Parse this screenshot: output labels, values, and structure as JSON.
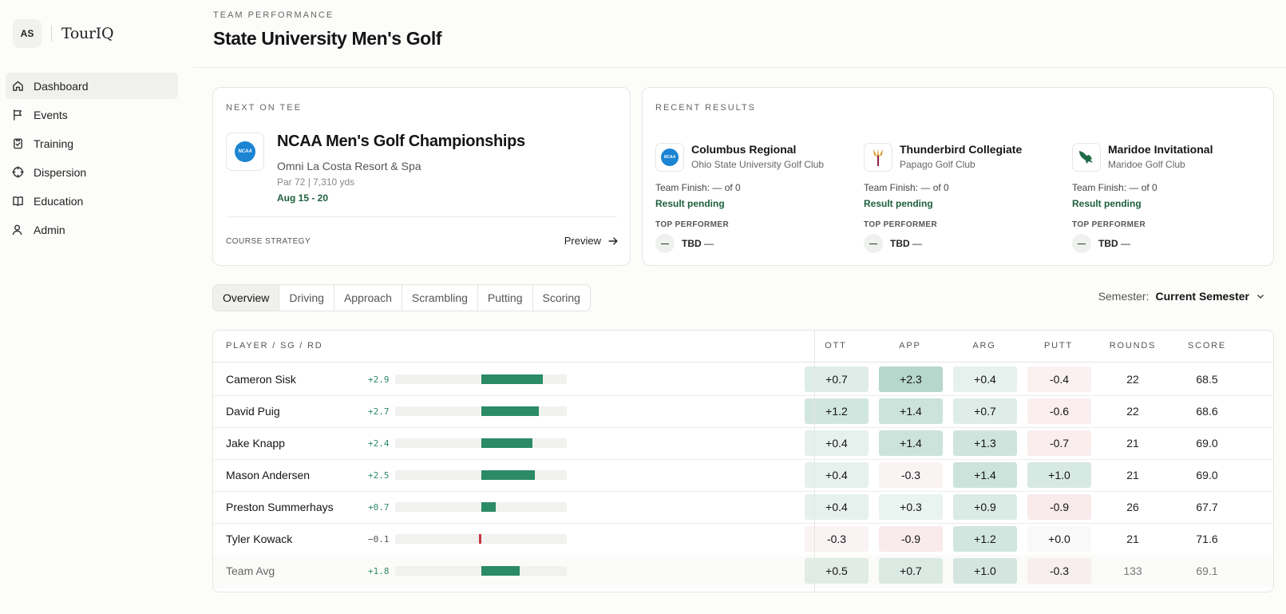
{
  "brand": {
    "initials": "AS",
    "name": "TourIQ"
  },
  "nav": [
    {
      "label": "Dashboard",
      "icon": "home-icon",
      "active": true
    },
    {
      "label": "Events",
      "icon": "flag-icon"
    },
    {
      "label": "Training",
      "icon": "clipboard-icon"
    },
    {
      "label": "Dispersion",
      "icon": "target-icon"
    },
    {
      "label": "Education",
      "icon": "book-icon"
    },
    {
      "label": "Admin",
      "icon": "user-icon"
    }
  ],
  "header": {
    "eyebrow": "TEAM PERFORMANCE",
    "title": "State University Men's Golf"
  },
  "next_on_tee": {
    "label": "NEXT ON TEE",
    "logo_text": "NCAA",
    "title": "NCAA Men's Golf Championships",
    "venue": "Omni La Costa Resort & Spa",
    "meta": "Par 72 | 7,310 yds",
    "dates": "Aug 15 - 20",
    "strategy_label": "COURSE STRATEGY",
    "preview_label": "Preview"
  },
  "recent_results": {
    "label": "RECENT RESULTS",
    "items": [
      {
        "name": "Columbus Regional",
        "club": "Ohio State University Golf Club",
        "finish_label": "Team Finish:",
        "finish": "— of 0",
        "status": "Result pending",
        "top_label": "TOP PERFORMER",
        "performer": "TBD",
        "performer_score": "—",
        "avatar": "—",
        "logo": "ncaa-logo",
        "logo_text": "NCAA"
      },
      {
        "name": "Thunderbird Collegiate",
        "club": "Papago Golf Club",
        "finish_label": "Team Finish:",
        "finish": "— of 0",
        "status": "Result pending",
        "top_label": "TOP PERFORMER",
        "performer": "TBD",
        "performer_score": "—",
        "avatar": "—",
        "logo": "pitchfork-logo"
      },
      {
        "name": "Maridoe Invitational",
        "club": "Maridoe Golf Club",
        "finish_label": "Team Finish:",
        "finish": "— of 0",
        "status": "Result pending",
        "top_label": "TOP PERFORMER",
        "performer": "TBD",
        "performer_score": "—",
        "avatar": "—",
        "logo": "eagle-logo"
      }
    ]
  },
  "tabs": [
    "Overview",
    "Driving",
    "Approach",
    "Scrambling",
    "Putting",
    "Scoring"
  ],
  "active_tab": "Overview",
  "semester": {
    "label": "Semester:",
    "value": "Current Semester"
  },
  "table": {
    "headers": {
      "player": "PLAYER / SG / RD",
      "ott": "OTT",
      "app": "APP",
      "arg": "ARG",
      "putt": "PUTT",
      "rounds": "ROUNDS",
      "score": "SCORE"
    },
    "sg_scale_max": 4,
    "rows": [
      {
        "name": "Cameron Sisk",
        "sg": "+2.9",
        "sg_value": 2.9,
        "ott": "+0.7",
        "app": "+2.3",
        "arg": "+0.4",
        "putt": "-0.4",
        "rounds": "22",
        "score": "68.5"
      },
      {
        "name": "David Puig",
        "sg": "+2.7",
        "sg_value": 2.7,
        "ott": "+1.2",
        "app": "+1.4",
        "arg": "+0.7",
        "putt": "-0.6",
        "rounds": "22",
        "score": "68.6"
      },
      {
        "name": "Jake Knapp",
        "sg": "+2.4",
        "sg_value": 2.4,
        "ott": "+0.4",
        "app": "+1.4",
        "arg": "+1.3",
        "putt": "-0.7",
        "rounds": "21",
        "score": "69.0"
      },
      {
        "name": "Mason Andersen",
        "sg": "+2.5",
        "sg_value": 2.5,
        "ott": "+0.4",
        "app": "-0.3",
        "arg": "+1.4",
        "putt": "+1.0",
        "rounds": "21",
        "score": "69.0"
      },
      {
        "name": "Preston Summerhays",
        "sg": "+0.7",
        "sg_value": 0.7,
        "ott": "+0.4",
        "app": "+0.3",
        "arg": "+0.9",
        "putt": "-0.9",
        "rounds": "26",
        "score": "67.7"
      },
      {
        "name": "Tyler Kowack",
        "sg": "−0.1",
        "sg_value": -0.1,
        "ott": "-0.3",
        "app": "-0.9",
        "arg": "+1.2",
        "putt": "+0.0",
        "rounds": "21",
        "score": "71.6"
      },
      {
        "name": "Team Avg",
        "sg": "+1.8",
        "sg_value": 1.8,
        "ott": "+0.5",
        "app": "+0.7",
        "arg": "+1.0",
        "putt": "-0.3",
        "rounds": "133",
        "score": "69.1",
        "team": true
      }
    ]
  },
  "colors": {
    "positive": "#2b8a68",
    "negative": "#c7343f",
    "accent_green": "#1d5f3c"
  }
}
